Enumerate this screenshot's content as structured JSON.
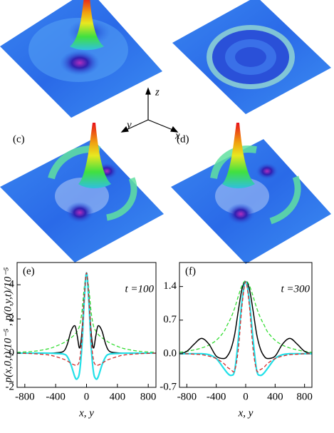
{
  "figure": {
    "panel_labels": [
      "(c)",
      "(d)"
    ],
    "axis_labels": [
      "z",
      "y",
      "x"
    ]
  },
  "chart_data": [
    {
      "type": "line",
      "label": "(e)",
      "annotation": "t =100",
      "ylabel": "p(x,0,t)/10⁻⁵ , p(0,y,t)/10⁻⁵",
      "xlabel": "x, y",
      "xlim": [
        -900,
        900
      ],
      "xticks": [
        -800,
        -400,
        0,
        400,
        800
      ],
      "ylim": [
        -2,
        5.3
      ],
      "yticks": [
        -2,
        0,
        2,
        4
      ],
      "x": [
        -900,
        -700,
        -500,
        -400,
        -300,
        -250,
        -200,
        -150,
        -120,
        -90,
        -60,
        -30,
        0,
        30,
        60,
        90,
        120,
        150,
        200,
        250,
        300,
        400,
        500,
        700,
        900
      ],
      "series": [
        {
          "color": "#33dd33",
          "dashed": true,
          "values": [
            0.05,
            0.1,
            0.25,
            0.4,
            0.6,
            0.75,
            0.9,
            1.1,
            1.3,
            1.6,
            2.4,
            3.8,
            4.7,
            3.8,
            2.4,
            1.6,
            1.3,
            1.1,
            0.9,
            0.75,
            0.6,
            0.4,
            0.25,
            0.1,
            0.05
          ]
        },
        {
          "color": "#000000",
          "dashed": false,
          "values": [
            0,
            0,
            0,
            0.02,
            0.1,
            0.5,
            1.3,
            1.6,
            1.0,
            0.3,
            1.2,
            3.3,
            4.7,
            3.3,
            1.2,
            0.3,
            1.0,
            1.6,
            1.3,
            0.5,
            0.1,
            0.02,
            0,
            0,
            0
          ]
        },
        {
          "color": "#22e0e8",
          "dashed": false,
          "values": [
            0,
            0,
            0,
            -0.02,
            -0.05,
            -0.2,
            -0.7,
            -1.4,
            -1.5,
            -1.1,
            0.4,
            3.0,
            4.7,
            3.0,
            0.4,
            -1.1,
            -1.5,
            -1.4,
            -0.7,
            -0.2,
            -0.05,
            -0.02,
            0,
            0,
            0
          ]
        },
        {
          "color": "#d42a2a",
          "dashed": true,
          "values": [
            0,
            -0.03,
            -0.1,
            -0.2,
            -0.35,
            -0.45,
            -0.6,
            -0.7,
            -0.7,
            -0.4,
            0.8,
            3.2,
            4.7,
            3.2,
            0.8,
            -0.4,
            -0.7,
            -0.7,
            -0.6,
            -0.45,
            -0.35,
            -0.2,
            -0.1,
            -0.03,
            0
          ]
        }
      ]
    },
    {
      "type": "line",
      "label": "(f)",
      "annotation": "t =300",
      "xlabel": "x, y",
      "xlim": [
        -900,
        900
      ],
      "xticks": [
        -800,
        -400,
        0,
        400,
        800
      ],
      "ylim": [
        -0.7,
        1.9
      ],
      "yticks": [
        -0.7,
        {
          "value": 0,
          "label": "0.0"
        },
        0.7,
        1.4
      ],
      "x": [
        -900,
        -800,
        -700,
        -600,
        -500,
        -400,
        -300,
        -250,
        -200,
        -150,
        -100,
        -50,
        0,
        50,
        100,
        150,
        200,
        250,
        300,
        400,
        500,
        600,
        700,
        800,
        900
      ],
      "series": [
        {
          "color": "#33dd33",
          "dashed": true,
          "values": [
            0.03,
            0.05,
            0.08,
            0.12,
            0.18,
            0.28,
            0.45,
            0.6,
            0.75,
            0.95,
            1.2,
            1.42,
            1.52,
            1.42,
            1.2,
            0.95,
            0.75,
            0.6,
            0.45,
            0.28,
            0.18,
            0.12,
            0.08,
            0.05,
            0.03
          ]
        },
        {
          "color": "#000000",
          "dashed": false,
          "values": [
            0,
            0.05,
            0.2,
            0.32,
            0.2,
            -0.05,
            -0.1,
            -0.05,
            0.1,
            0.4,
            0.9,
            1.35,
            1.5,
            1.35,
            0.9,
            0.4,
            0.1,
            -0.05,
            -0.1,
            -0.05,
            0.2,
            0.32,
            0.2,
            0.05,
            0
          ]
        },
        {
          "color": "#22e0e8",
          "dashed": false,
          "values": [
            0,
            0,
            0,
            0,
            -0.02,
            -0.1,
            -0.3,
            -0.4,
            -0.45,
            -0.35,
            0.3,
            1.1,
            1.5,
            1.1,
            0.3,
            -0.35,
            -0.45,
            -0.4,
            -0.3,
            -0.1,
            -0.02,
            0,
            0,
            0,
            0
          ]
        },
        {
          "color": "#d42a2a",
          "dashed": true,
          "values": [
            0,
            0,
            -0.01,
            -0.02,
            -0.05,
            -0.1,
            -0.2,
            -0.28,
            -0.33,
            -0.35,
            0.1,
            1.0,
            1.5,
            1.0,
            0.1,
            -0.35,
            -0.33,
            -0.28,
            -0.2,
            -0.1,
            -0.05,
            -0.02,
            -0.01,
            0,
            0
          ]
        }
      ]
    }
  ]
}
